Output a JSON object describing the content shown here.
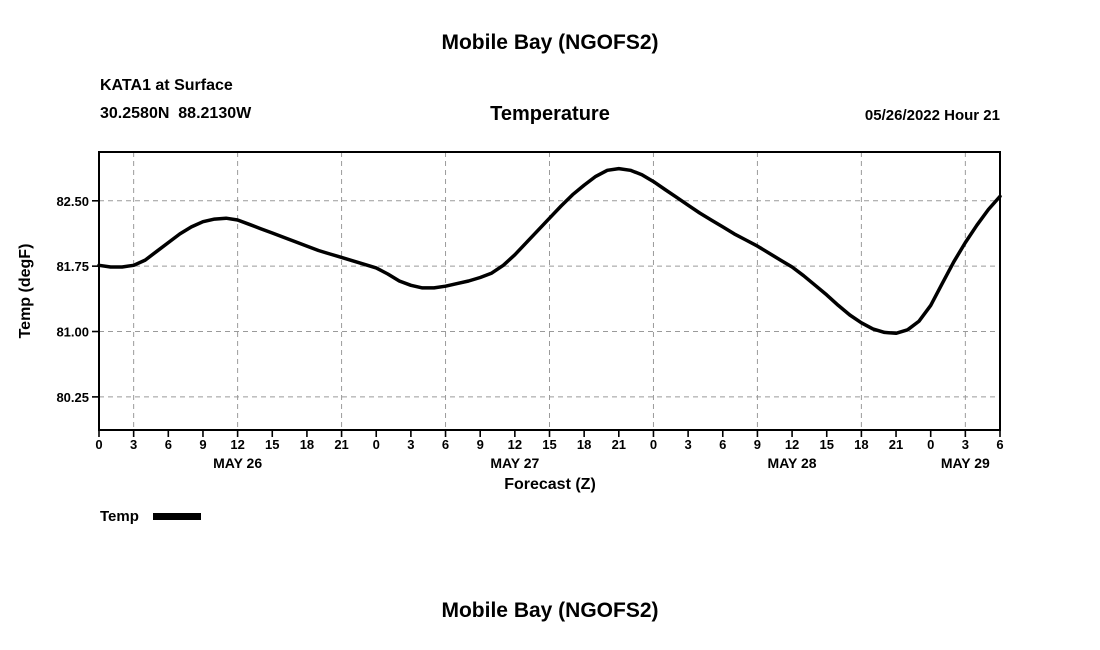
{
  "header": {
    "title": "Mobile Bay (NGOFS2)",
    "station_line1": "KATA1 at Surface",
    "station_line2": "30.2580N  88.2130W",
    "plot_title": "Temperature",
    "datetime_label": "05/26/2022 Hour 21"
  },
  "footer": {
    "next_title": "Mobile Bay (NGOFS2)"
  },
  "legend": {
    "label": "Temp",
    "line_color": "#000000"
  },
  "chart_data": {
    "type": "line",
    "title": "Temperature",
    "xlabel": "Forecast (Z)",
    "ylabel": "Temp (degF)",
    "xlim": [
      0,
      78
    ],
    "ylim": [
      79.87,
      83.06
    ],
    "grid": true,
    "line_color": "#000000",
    "line_width": 3.5,
    "yticks": [
      80.25,
      81.0,
      81.75,
      82.5
    ],
    "ytick_labels": [
      "80.25",
      "81.00",
      "81.75",
      "82.50"
    ],
    "xtick_interval_hours": 3,
    "xtick_labels": [
      "0",
      "3",
      "6",
      "9",
      "12",
      "15",
      "18",
      "21",
      "0",
      "3",
      "6",
      "9",
      "12",
      "15",
      "18",
      "21",
      "0",
      "3",
      "6",
      "9",
      "12",
      "15",
      "18",
      "21",
      "0",
      "3",
      "6"
    ],
    "x_gridlines_hours": [
      3,
      12,
      21,
      30,
      39,
      48,
      57,
      66,
      75
    ],
    "day_labels": [
      {
        "label": "MAY 26",
        "center_hour": 12
      },
      {
        "label": "MAY 27",
        "center_hour": 36
      },
      {
        "label": "MAY 28",
        "center_hour": 60
      },
      {
        "label": "MAY 29",
        "center_hour": 75
      }
    ],
    "hours": [
      0,
      1,
      2,
      3,
      4,
      5,
      6,
      7,
      8,
      9,
      10,
      11,
      12,
      13,
      14,
      15,
      16,
      17,
      18,
      19,
      20,
      21,
      22,
      23,
      24,
      25,
      26,
      27,
      28,
      29,
      30,
      31,
      32,
      33,
      34,
      35,
      36,
      37,
      38,
      39,
      40,
      41,
      42,
      43,
      44,
      45,
      46,
      47,
      48,
      49,
      50,
      51,
      52,
      53,
      54,
      55,
      56,
      57,
      58,
      59,
      60,
      61,
      62,
      63,
      64,
      65,
      66,
      67,
      68,
      69,
      70,
      71,
      72,
      73,
      74,
      75,
      76,
      77,
      78
    ],
    "values": [
      81.76,
      81.74,
      81.74,
      81.76,
      81.82,
      81.92,
      82.02,
      82.12,
      82.2,
      82.26,
      82.29,
      82.3,
      82.28,
      82.23,
      82.18,
      82.13,
      82.08,
      82.03,
      81.98,
      81.93,
      81.89,
      81.85,
      81.81,
      81.77,
      81.73,
      81.66,
      81.58,
      81.53,
      81.5,
      81.5,
      81.52,
      81.55,
      81.58,
      81.62,
      81.67,
      81.76,
      81.88,
      82.02,
      82.16,
      82.3,
      82.44,
      82.57,
      82.68,
      82.78,
      82.85,
      82.87,
      82.85,
      82.8,
      82.72,
      82.63,
      82.54,
      82.45,
      82.36,
      82.28,
      82.2,
      82.12,
      82.05,
      81.98,
      81.9,
      81.82,
      81.74,
      81.64,
      81.53,
      81.42,
      81.3,
      81.19,
      81.1,
      81.03,
      80.99,
      80.98,
      81.02,
      81.12,
      81.3,
      81.55,
      81.8,
      82.02,
      82.22,
      82.4,
      82.55
    ]
  }
}
